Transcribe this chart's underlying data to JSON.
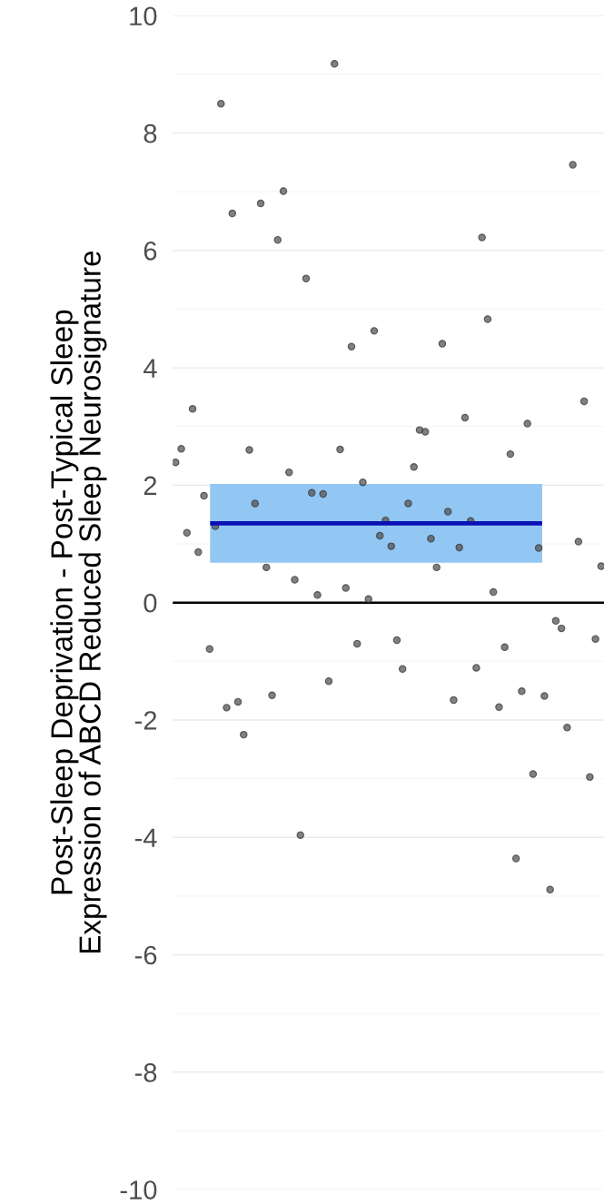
{
  "chart_data": {
    "type": "scatter",
    "ylabel": "Post-Sleep Deprivation - Post-Typical Sleep\nExpression of ABCD Reduced Sleep Neurosignature",
    "categories": [
      null,
      null,
      null,
      null,
      null,
      null,
      null,
      null,
      null,
      null,
      null,
      null,
      null,
      null,
      null,
      null,
      null,
      null,
      null,
      null,
      null,
      null,
      null,
      null,
      null,
      null,
      null,
      null,
      null,
      null,
      null,
      null,
      null,
      null,
      null,
      null,
      null,
      null,
      null,
      null,
      null,
      null,
      null,
      null,
      null,
      null,
      null,
      null,
      null,
      null,
      null,
      null,
      null,
      null,
      null,
      null,
      null,
      null,
      null,
      null,
      null,
      null,
      null,
      null,
      null,
      null,
      null,
      null,
      null,
      null,
      null,
      null,
      null,
      null,
      null,
      null
    ],
    "series": [
      {
        "color": "#555555",
        "values": [
          2.39,
          2.62,
          1.19,
          3.3,
          0.86,
          1.82,
          -0.79,
          1.3,
          8.5,
          -1.79,
          6.63,
          -1.69,
          -2.25,
          2.6,
          1.69,
          6.8,
          0.6,
          -1.58,
          6.18,
          7.01,
          2.22,
          0.39,
          -3.96,
          5.52,
          1.87,
          0.13,
          1.85,
          -1.34,
          9.18,
          2.61,
          0.25,
          4.36,
          -0.7,
          2.05,
          0.06,
          4.63,
          1.14,
          1.4,
          0.96,
          -0.64,
          -1.13,
          1.69,
          2.31,
          2.94,
          2.91,
          1.09,
          0.6,
          4.41,
          1.55,
          -1.66,
          0.94,
          3.15,
          1.39,
          -1.11,
          6.22,
          4.83,
          0.18,
          -1.78,
          -0.76,
          2.53,
          -4.36,
          -1.51,
          3.05,
          -2.92,
          0.93,
          -1.59,
          -4.89,
          -0.31,
          -0.44,
          -2.13,
          7.46,
          1.04,
          3.43,
          -2.97,
          -0.62,
          0.62
        ]
      }
    ],
    "bands": [
      {
        "axis": "y",
        "from": 0.68,
        "to": 2.02,
        "color": "#92c7f3"
      }
    ],
    "ref_lines": [
      {
        "axis": "y",
        "value": 0,
        "color": "#000000"
      },
      {
        "axis": "y",
        "value": 1.35,
        "color": "#0a10b4"
      }
    ],
    "ylim": [
      -10,
      10
    ],
    "yticks": [
      -10,
      -8,
      -6,
      -4,
      -2,
      0,
      2,
      4,
      6,
      8,
      10
    ],
    "grid": "y",
    "marker": "circle"
  }
}
